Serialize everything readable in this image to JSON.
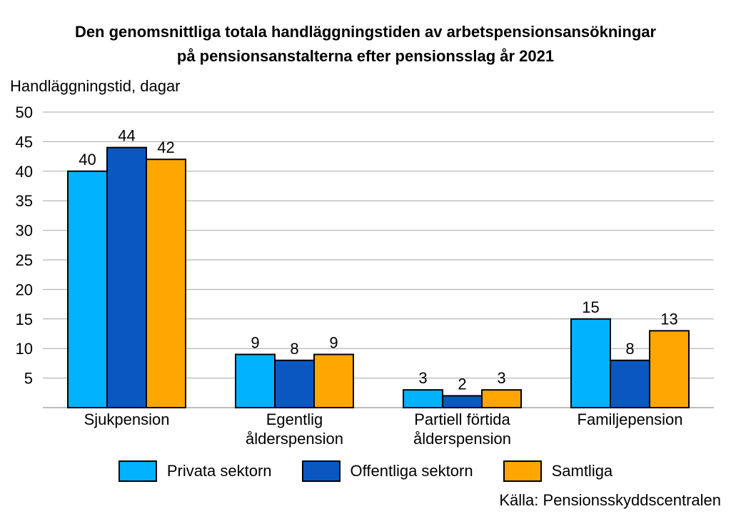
{
  "chart_data": {
    "type": "bar",
    "title_line1": "Den genomsnittliga totala handläggningstiden av arbetspensionsansökningar",
    "title_line2": "på pensionsanstalterna efter pensionsslag år 2021",
    "ylabel": "Handläggningstid, dagar",
    "ylim": [
      0,
      50
    ],
    "yticks": [
      5,
      10,
      15,
      20,
      25,
      30,
      35,
      40,
      45,
      50
    ],
    "grid": true,
    "legend_position": "bottom",
    "categories": [
      [
        "Sjukpension"
      ],
      [
        "Egentlig",
        "ålderspension"
      ],
      [
        "Partiell förtida",
        "ålderspension"
      ],
      [
        "Familjepension"
      ]
    ],
    "series": [
      {
        "name": "Privata sektorn",
        "color": "#00b2ff",
        "values": [
          40,
          9,
          3,
          15
        ]
      },
      {
        "name": "Offentliga sektorn",
        "color": "#0a57c2",
        "values": [
          44,
          8,
          2,
          8
        ]
      },
      {
        "name": "Samtliga",
        "color": "#ffa600",
        "values": [
          42,
          9,
          3,
          13
        ]
      }
    ],
    "source": "Källa: Pensionsskyddscentralen"
  }
}
